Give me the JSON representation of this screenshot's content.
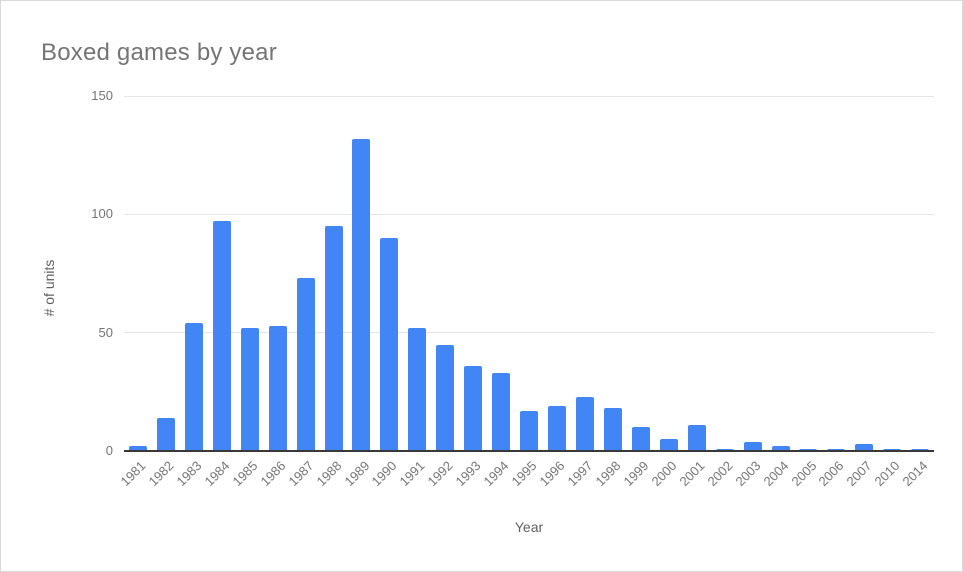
{
  "window": {
    "background": "#ffffff",
    "border_color": "#d9d9d9"
  },
  "chart_data": {
    "type": "bar",
    "title": "Boxed games by year",
    "xlabel": "Year",
    "ylabel": "# of units",
    "categories": [
      "1981",
      "1982",
      "1983",
      "1984",
      "1985",
      "1986",
      "1987",
      "1988",
      "1989",
      "1990",
      "1991",
      "1992",
      "1993",
      "1994",
      "1995",
      "1996",
      "1997",
      "1998",
      "1999",
      "2000",
      "2001",
      "2002",
      "2003",
      "2004",
      "2005",
      "2006",
      "2007",
      "2010",
      "2014"
    ],
    "values": [
      2,
      14,
      54,
      97,
      52,
      53,
      73,
      95,
      132,
      90,
      52,
      45,
      36,
      33,
      17,
      19,
      23,
      18,
      10,
      5,
      11,
      1,
      4,
      2,
      1,
      1,
      3,
      1,
      1
    ],
    "ylim": [
      0,
      150
    ],
    "yticks": [
      0,
      50,
      100,
      150
    ],
    "grid": true,
    "legend": "none",
    "bar_color": "#4285f4",
    "title_color": "#757575",
    "axis_title_color": "#616161",
    "tick_color": "#757575",
    "gridline_color": "#e6e6e6",
    "baseline_color": "#383838"
  }
}
